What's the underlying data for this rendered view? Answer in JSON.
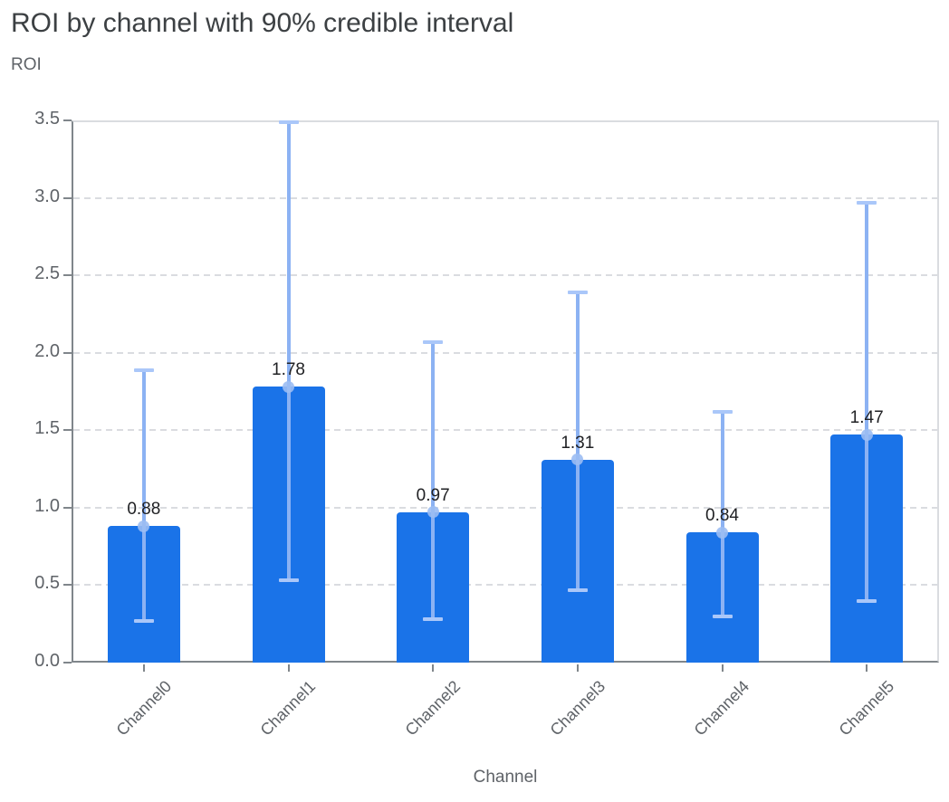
{
  "chart_data": {
    "type": "bar",
    "title": "ROI by channel with 90% credible interval",
    "ylabel": "ROI",
    "xlabel": "Channel",
    "categories": [
      "Channel0",
      "Channel1",
      "Channel2",
      "Channel3",
      "Channel4",
      "Channel5"
    ],
    "values": [
      0.88,
      1.78,
      0.97,
      1.31,
      0.84,
      1.47
    ],
    "value_labels": [
      "0.88",
      "1.78",
      "0.97",
      "1.31",
      "0.84",
      "1.47"
    ],
    "error_low": [
      0.27,
      0.53,
      0.28,
      0.47,
      0.3,
      0.4
    ],
    "error_high": [
      1.89,
      3.49,
      2.07,
      2.39,
      1.62,
      2.97
    ],
    "error_note": "90% credible interval",
    "ylim": [
      0,
      3.5
    ],
    "yticks": [
      "0.0",
      "0.5",
      "1.0",
      "1.5",
      "2.0",
      "2.5",
      "3.0",
      "3.5"
    ],
    "grid": "horizontal dashed",
    "legend": "none",
    "colors": {
      "bar": "#1a73e8",
      "error_line": "#8cb2f3",
      "error_cap": "#aac7f9",
      "mean_marker": "#9bbdf3",
      "grid": "#dadce0",
      "axis": "#80868b",
      "title_text": "#3c4043",
      "axis_text": "#5f6368",
      "value_text": "#202124"
    }
  }
}
